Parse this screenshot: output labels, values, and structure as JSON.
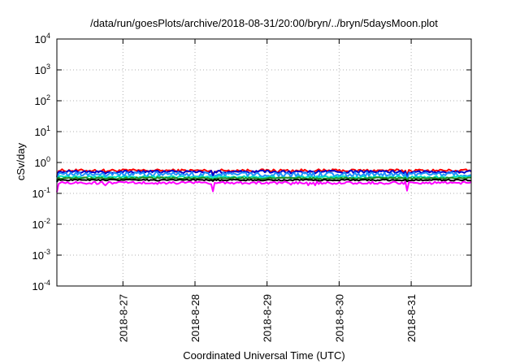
{
  "chart_data": {
    "type": "line",
    "title": "/data/run/goesPlots/archive/2018-08-31/20:00/bryn/../bryn/5daysMoon.plot",
    "xlabel": "Coordinated Universal Time (UTC)",
    "ylabel": "cSv/day",
    "yscale": "log",
    "ylim": [
      0.0001,
      10000
    ],
    "ytick_exponents": [
      -4,
      -3,
      -2,
      -1,
      0,
      1,
      2,
      3,
      4
    ],
    "ytick_base": "10",
    "xlim": [
      "2018-08-26T02:00",
      "2018-08-31T20:00"
    ],
    "xticks": [
      "2018-8-27",
      "2018-8-28",
      "2018-8-29",
      "2018-8-30",
      "2018-8-31"
    ],
    "grid": true,
    "legend": "none",
    "series": [
      {
        "color": "#ff0000",
        "typical": 0.55,
        "spread": 0.08,
        "dip_depth": 0.35
      },
      {
        "color": "#0000cc",
        "typical": 0.5,
        "spread": 0.07,
        "dip_depth": 0.35
      },
      {
        "color": "#1e90ff",
        "typical": 0.42,
        "spread": 0.1,
        "dip_depth": 0.45
      },
      {
        "color": "#00e0c0",
        "typical": 0.34,
        "spread": 0.04,
        "dip_depth": 0.2
      },
      {
        "color": "#228b22",
        "typical": 0.31,
        "spread": 0.03,
        "dip_depth": 0.15
      },
      {
        "color": "#000000",
        "typical": 0.27,
        "spread": 0.02,
        "dip_depth": 0.1
      },
      {
        "color": "#ff00ff",
        "typical": 0.22,
        "spread": 0.03,
        "dip_depth": 0.6
      }
    ]
  }
}
